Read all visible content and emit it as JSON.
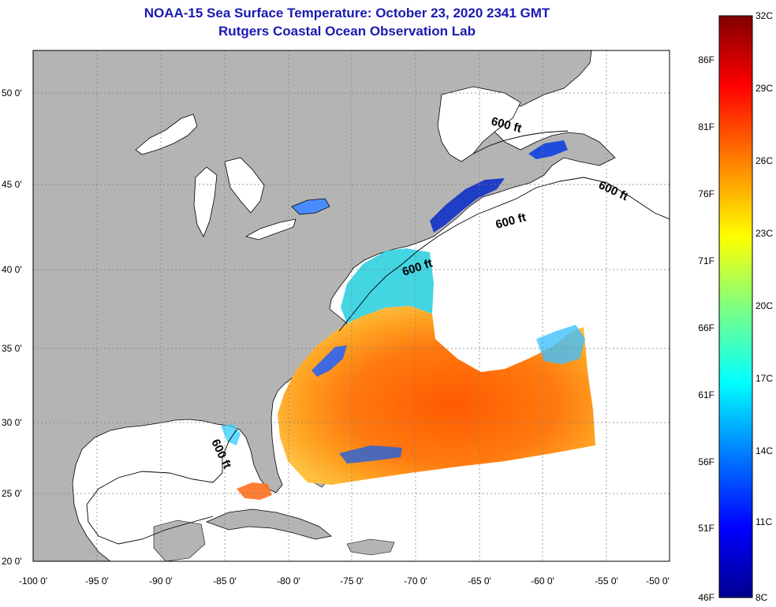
{
  "title": "NOAA-15 Sea Surface Temperature:  October 23, 2020 2341 GMT",
  "subtitle": "Rutgers Coastal Ocean Observation Lab",
  "map": {
    "lon_labels": [
      "-100 0'",
      "-95 0'",
      "-90 0'",
      "-85 0'",
      "-80 0'",
      "-75 0'",
      "-70 0'",
      "-65 0'",
      "-60 0'",
      "-55 0'",
      "-50 0'"
    ],
    "lat_labels": [
      "50 0'",
      "45 0'",
      "40 0'",
      "35 0'",
      "30 0'",
      "25 0'",
      "20 0'"
    ],
    "contour_label": "600 ft",
    "colors": {
      "land": "#b4b4b4",
      "ocean": "#ffffff",
      "grid": "#7a7a7a"
    }
  },
  "colorbar": {
    "celsius_labels": [
      "32C",
      "29C",
      "26C",
      "23C",
      "20C",
      "17C",
      "14C",
      "11C",
      "8C"
    ],
    "fahrenheit_labels": [
      "86F",
      "81F",
      "76F",
      "71F",
      "66F",
      "61F",
      "56F",
      "51F",
      "46F"
    ],
    "range_c": [
      8,
      32
    ],
    "colormap": [
      "#00008f",
      "#0000ff",
      "#0080ff",
      "#00ffff",
      "#80ff80",
      "#ffff00",
      "#ff8000",
      "#ff0000",
      "#800000"
    ]
  }
}
